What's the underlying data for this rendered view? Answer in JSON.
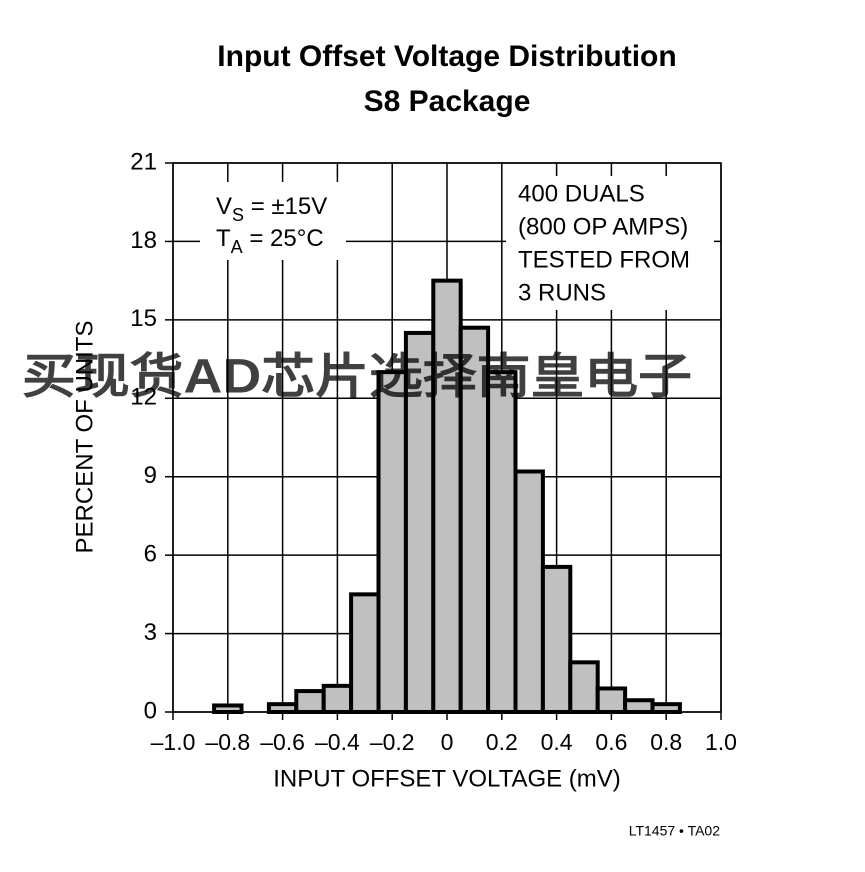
{
  "chart_data": {
    "type": "histogram",
    "title": "Input Offset Voltage Distribution",
    "subtitle": "S8 Package",
    "x_label": "INPUT OFFSET VOLTAGE (mV)",
    "y_label": "PERCENT OF UNITS",
    "bins": [
      -0.85,
      -0.75,
      -0.65,
      -0.55,
      -0.45,
      -0.35,
      -0.25,
      -0.15,
      -0.05,
      0.05,
      0.15,
      0.25,
      0.35,
      0.45,
      0.55,
      0.65,
      0.75,
      0.85
    ],
    "values": [
      0.25,
      0,
      0.3,
      0.8,
      1.0,
      4.5,
      13.0,
      14.5,
      16.5,
      14.7,
      13.0,
      9.2,
      5.55,
      1.9,
      0.9,
      0.45,
      0.3
    ],
    "color": "#c0c0c0",
    "xlim": [
      -1,
      1
    ],
    "xticks": [
      {
        "value": -1,
        "label": "–1.0"
      },
      {
        "value": -0.8,
        "label": "–0.8"
      },
      {
        "value": -0.6,
        "label": "–0.6"
      },
      {
        "value": -0.4,
        "label": "–0.4"
      },
      {
        "value": -0.2,
        "label": "–0.2"
      },
      0,
      0.2,
      0.4,
      0.6,
      0.8,
      {
        "value": 1,
        "label": "1.0"
      }
    ],
    "ylim": [
      0,
      21
    ],
    "yticks": [
      0,
      3,
      6,
      9,
      12,
      15,
      18,
      21
    ],
    "grid": true,
    "conditions": [
      {
        "main": "V",
        "sub": "S",
        "rest": " = ±15V"
      },
      {
        "main": "T",
        "sub": "A",
        "rest": " = 25°C"
      }
    ],
    "note": [
      "400 DUALS",
      "(800 OP AMPS)",
      "TESTED FROM",
      "3 RUNS"
    ],
    "watermark": "买现货AD芯片选择南皇电子",
    "footer": "LT1457 • TA02"
  }
}
